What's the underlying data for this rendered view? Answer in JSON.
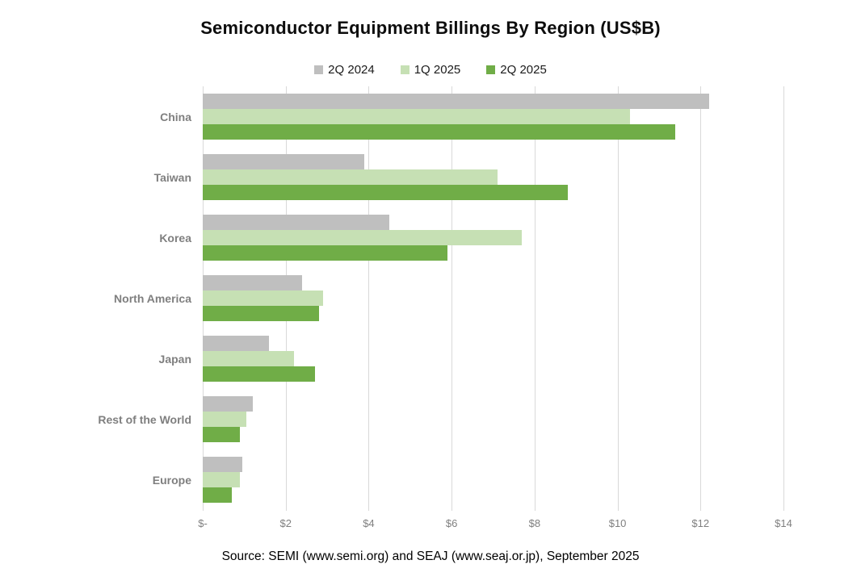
{
  "title": "Semiconductor Equipment Billings By Region (US$B)",
  "source": "Source: SEMI (www.semi.org) and SEAJ (www.seaj.or.jp), September 2025",
  "colors": {
    "series_2q2024": "#bfbfbf",
    "series_1q2025": "#c6e0b4",
    "series_2q2025": "#70ad47",
    "gridline": "#d9d9d9",
    "axis_text": "#7f7f7f",
    "title_text": "#0d0d0d"
  },
  "chart_data": {
    "type": "bar",
    "orientation": "horizontal",
    "title": "Semiconductor Equipment Billings By Region (US$B)",
    "categories": [
      "China",
      "Taiwan",
      "Korea",
      "North America",
      "Japan",
      "Rest of the World",
      "Europe"
    ],
    "series": [
      {
        "name": "2Q 2024",
        "color": "#bfbfbf",
        "values": [
          12.2,
          3.9,
          4.5,
          2.4,
          1.6,
          1.2,
          0.95
        ]
      },
      {
        "name": "1Q 2025",
        "color": "#c6e0b4",
        "values": [
          10.3,
          7.1,
          7.7,
          2.9,
          2.2,
          1.05,
          0.9
        ]
      },
      {
        "name": "2Q 2025",
        "color": "#70ad47",
        "values": [
          11.4,
          8.8,
          5.9,
          2.8,
          2.7,
          0.9,
          0.7
        ]
      }
    ],
    "x_ticks": [
      "$-",
      "$2",
      "$4",
      "$6",
      "$8",
      "$10",
      "$12",
      "$14"
    ],
    "xlim": [
      0,
      14
    ],
    "xlabel": "",
    "ylabel": "",
    "grid": "vertical-only",
    "legend_position": "top-center"
  }
}
